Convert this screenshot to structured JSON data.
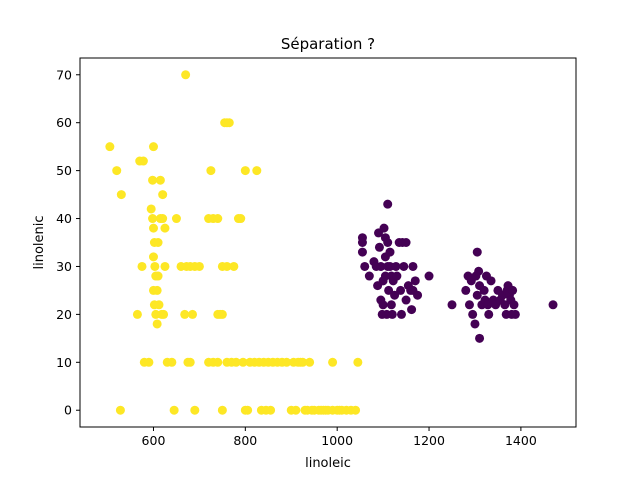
{
  "chart_data": {
    "type": "scatter",
    "title": "Séparation ?",
    "xlabel": "linoleic",
    "ylabel": "linolenic",
    "xlim": [
      440,
      1520
    ],
    "ylim": [
      -3.5,
      73.5
    ],
    "xticks": [
      600,
      800,
      1000,
      1200,
      1400
    ],
    "yticks": [
      0,
      10,
      20,
      30,
      40,
      50,
      60,
      70
    ],
    "grid": false,
    "colors": {
      "group_a": "#fde725",
      "group_b": "#440154"
    },
    "series": [
      {
        "color_key": "group_a",
        "points": [
          [
            505,
            55
          ],
          [
            520,
            50
          ],
          [
            530,
            45
          ],
          [
            528,
            0
          ],
          [
            570,
            52
          ],
          [
            578,
            52
          ],
          [
            565,
            20
          ],
          [
            575,
            30
          ],
          [
            580,
            10
          ],
          [
            590,
            10
          ],
          [
            595,
            42
          ],
          [
            598,
            40
          ],
          [
            600,
            38
          ],
          [
            600,
            55
          ],
          [
            602,
            35
          ],
          [
            603,
            30
          ],
          [
            605,
            28
          ],
          [
            600,
            25
          ],
          [
            602,
            22
          ],
          [
            605,
            20
          ],
          [
            608,
            18
          ],
          [
            598,
            48
          ],
          [
            600,
            32
          ],
          [
            610,
            35
          ],
          [
            608,
            25
          ],
          [
            612,
            22
          ],
          [
            610,
            28
          ],
          [
            615,
            48
          ],
          [
            620,
            45
          ],
          [
            615,
            40
          ],
          [
            620,
            40
          ],
          [
            625,
            38
          ],
          [
            625,
            30
          ],
          [
            618,
            20
          ],
          [
            622,
            20
          ],
          [
            630,
            10
          ],
          [
            640,
            10
          ],
          [
            645,
            0
          ],
          [
            650,
            40
          ],
          [
            660,
            30
          ],
          [
            670,
            70
          ],
          [
            672,
            30
          ],
          [
            680,
            30
          ],
          [
            668,
            20
          ],
          [
            675,
            10
          ],
          [
            680,
            10
          ],
          [
            685,
            20
          ],
          [
            690,
            30
          ],
          [
            700,
            30
          ],
          [
            690,
            0
          ],
          [
            720,
            40
          ],
          [
            730,
            40
          ],
          [
            725,
            50
          ],
          [
            740,
            40
          ],
          [
            720,
            10
          ],
          [
            730,
            10
          ],
          [
            740,
            20
          ],
          [
            745,
            20
          ],
          [
            750,
            30
          ],
          [
            760,
            30
          ],
          [
            740,
            10
          ],
          [
            750,
            20
          ],
          [
            755,
            60
          ],
          [
            760,
            60
          ],
          [
            765,
            60
          ],
          [
            750,
            0
          ],
          [
            760,
            10
          ],
          [
            770,
            10
          ],
          [
            780,
            10
          ],
          [
            775,
            30
          ],
          [
            785,
            40
          ],
          [
            790,
            40
          ],
          [
            795,
            10
          ],
          [
            800,
            50
          ],
          [
            800,
            0
          ],
          [
            805,
            0
          ],
          [
            810,
            10
          ],
          [
            820,
            10
          ],
          [
            825,
            50
          ],
          [
            830,
            10
          ],
          [
            835,
            0
          ],
          [
            840,
            10
          ],
          [
            845,
            0
          ],
          [
            850,
            10
          ],
          [
            855,
            0
          ],
          [
            860,
            10
          ],
          [
            870,
            10
          ],
          [
            880,
            10
          ],
          [
            890,
            10
          ],
          [
            900,
            0
          ],
          [
            905,
            10
          ],
          [
            910,
            0
          ],
          [
            915,
            10
          ],
          [
            920,
            10
          ],
          [
            925,
            10
          ],
          [
            930,
            0
          ],
          [
            935,
            0
          ],
          [
            940,
            10
          ],
          [
            945,
            0
          ],
          [
            950,
            0
          ],
          [
            960,
            0
          ],
          [
            965,
            0
          ],
          [
            970,
            0
          ],
          [
            975,
            0
          ],
          [
            980,
            0
          ],
          [
            990,
            10
          ],
          [
            990,
            0
          ],
          [
            1000,
            0
          ],
          [
            1005,
            0
          ],
          [
            1010,
            0
          ],
          [
            1020,
            0
          ],
          [
            1030,
            0
          ],
          [
            1040,
            0
          ],
          [
            1045,
            10
          ]
        ]
      },
      {
        "color_key": "group_b",
        "points": [
          [
            1055,
            36
          ],
          [
            1055,
            35
          ],
          [
            1055,
            33
          ],
          [
            1060,
            30
          ],
          [
            1070,
            28
          ],
          [
            1080,
            31
          ],
          [
            1085,
            30
          ],
          [
            1088,
            26
          ],
          [
            1090,
            37
          ],
          [
            1092,
            34
          ],
          [
            1095,
            30
          ],
          [
            1095,
            23
          ],
          [
            1098,
            20
          ],
          [
            1100,
            27
          ],
          [
            1100,
            22
          ],
          [
            1102,
            38
          ],
          [
            1105,
            36
          ],
          [
            1105,
            32
          ],
          [
            1105,
            28
          ],
          [
            1108,
            20
          ],
          [
            1110,
            43
          ],
          [
            1110,
            35
          ],
          [
            1110,
            30
          ],
          [
            1112,
            25
          ],
          [
            1115,
            33
          ],
          [
            1115,
            30
          ],
          [
            1118,
            28
          ],
          [
            1118,
            22
          ],
          [
            1120,
            20
          ],
          [
            1122,
            27
          ],
          [
            1125,
            24
          ],
          [
            1128,
            30
          ],
          [
            1130,
            28
          ],
          [
            1135,
            35
          ],
          [
            1138,
            25
          ],
          [
            1140,
            20
          ],
          [
            1142,
            35
          ],
          [
            1145,
            30
          ],
          [
            1150,
            35
          ],
          [
            1150,
            23
          ],
          [
            1155,
            26
          ],
          [
            1160,
            25
          ],
          [
            1162,
            21
          ],
          [
            1165,
            25
          ],
          [
            1165,
            30
          ],
          [
            1170,
            27
          ],
          [
            1175,
            24
          ],
          [
            1200,
            28
          ],
          [
            1250,
            22
          ],
          [
            1280,
            25
          ],
          [
            1285,
            28
          ],
          [
            1288,
            22
          ],
          [
            1292,
            27
          ],
          [
            1295,
            20
          ],
          [
            1300,
            18
          ],
          [
            1302,
            28
          ],
          [
            1305,
            33
          ],
          [
            1305,
            24
          ],
          [
            1308,
            29
          ],
          [
            1310,
            26
          ],
          [
            1310,
            15
          ],
          [
            1315,
            22
          ],
          [
            1320,
            25
          ],
          [
            1322,
            23
          ],
          [
            1325,
            28
          ],
          [
            1328,
            22
          ],
          [
            1330,
            20
          ],
          [
            1335,
            27
          ],
          [
            1340,
            23
          ],
          [
            1345,
            22
          ],
          [
            1350,
            25
          ],
          [
            1355,
            23
          ],
          [
            1360,
            24
          ],
          [
            1365,
            22
          ],
          [
            1368,
            20
          ],
          [
            1370,
            25
          ],
          [
            1372,
            26
          ],
          [
            1375,
            24
          ],
          [
            1378,
            23
          ],
          [
            1380,
            20
          ],
          [
            1382,
            25
          ],
          [
            1385,
            22
          ],
          [
            1388,
            20
          ],
          [
            1470,
            22
          ]
        ]
      }
    ]
  }
}
